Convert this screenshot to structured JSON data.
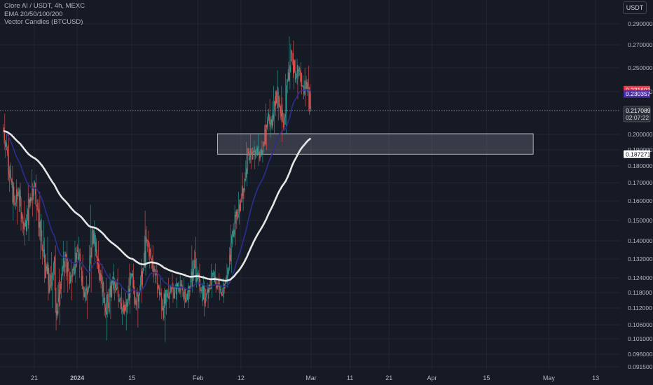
{
  "legend": {
    "symbol_line": "Clore AI / USDT, 4h, MEXC",
    "ema_line": "EMA 20/50/100/200",
    "vector_line": "Vector Candles (BTCUSD)"
  },
  "currency_button": "USDT",
  "colors": {
    "background": "#161a25",
    "bull": "#26a69a",
    "bear": "#ef5350",
    "ema_fast": "#2b2e8f",
    "ema_slow": "#e6e6e6",
    "zone_fill": "rgba(120,123,134,0.35)",
    "zone_border": "#d1d4dc",
    "red_tag": "#f23645",
    "purple_tag": "#4b2ea8",
    "white_tag": "#ffffff"
  },
  "chart_data": {
    "type": "candlestick",
    "title": "Clore AI / USDT, 4h, MEXC",
    "y_axis": {
      "unit": "USDT",
      "ticks": [
        "0.290000",
        "0.270000",
        "0.250000",
        "0.230000",
        "0.200000",
        "0.190000",
        "0.180000",
        "0.170000",
        "0.160000",
        "0.150000",
        "0.140000",
        "0.132000",
        "0.124000",
        "0.118000",
        "0.112000",
        "0.106000",
        "0.101000",
        "0.096000",
        "0.091500"
      ]
    },
    "x_axis": {
      "ticks": [
        "21",
        "2024",
        "15",
        "Feb",
        "12",
        "Mar",
        "11",
        "21",
        "Apr",
        "15",
        "May",
        "13"
      ]
    },
    "price_tags": {
      "ema_red": "0.231601",
      "ema_purple": "0.230357",
      "last_price": "0.217089",
      "countdown": "02:07:22",
      "zone_low": "0.187271"
    },
    "zone": {
      "from_date": "2024-02-06",
      "to_date": "2024-04-27",
      "low": 0.187271,
      "high": 0.2005
    },
    "ohlc_daily": [
      {
        "date": "2023-12-13",
        "o": 0.205,
        "h": 0.215,
        "l": 0.185,
        "c": 0.19
      },
      {
        "date": "2023-12-14",
        "o": 0.19,
        "h": 0.2,
        "l": 0.165,
        "c": 0.172
      },
      {
        "date": "2023-12-15",
        "o": 0.172,
        "h": 0.18,
        "l": 0.15,
        "c": 0.158
      },
      {
        "date": "2023-12-16",
        "o": 0.158,
        "h": 0.172,
        "l": 0.148,
        "c": 0.165
      },
      {
        "date": "2023-12-17",
        "o": 0.165,
        "h": 0.17,
        "l": 0.145,
        "c": 0.152
      },
      {
        "date": "2023-12-18",
        "o": 0.152,
        "h": 0.16,
        "l": 0.138,
        "c": 0.145
      },
      {
        "date": "2023-12-19",
        "o": 0.145,
        "h": 0.17,
        "l": 0.14,
        "c": 0.162
      },
      {
        "date": "2023-12-20",
        "o": 0.162,
        "h": 0.178,
        "l": 0.152,
        "c": 0.17
      },
      {
        "date": "2023-12-21",
        "o": 0.17,
        "h": 0.175,
        "l": 0.15,
        "c": 0.155
      },
      {
        "date": "2023-12-22",
        "o": 0.155,
        "h": 0.165,
        "l": 0.132,
        "c": 0.138
      },
      {
        "date": "2023-12-23",
        "o": 0.138,
        "h": 0.15,
        "l": 0.122,
        "c": 0.128
      },
      {
        "date": "2023-12-24",
        "o": 0.128,
        "h": 0.142,
        "l": 0.115,
        "c": 0.12
      },
      {
        "date": "2023-12-25",
        "o": 0.12,
        "h": 0.135,
        "l": 0.112,
        "c": 0.13
      },
      {
        "date": "2023-12-26",
        "o": 0.13,
        "h": 0.138,
        "l": 0.104,
        "c": 0.11
      },
      {
        "date": "2023-12-27",
        "o": 0.11,
        "h": 0.128,
        "l": 0.106,
        "c": 0.124
      },
      {
        "date": "2023-12-28",
        "o": 0.124,
        "h": 0.14,
        "l": 0.118,
        "c": 0.134
      },
      {
        "date": "2023-12-29",
        "o": 0.134,
        "h": 0.14,
        "l": 0.118,
        "c": 0.122
      },
      {
        "date": "2023-12-30",
        "o": 0.122,
        "h": 0.132,
        "l": 0.115,
        "c": 0.128
      },
      {
        "date": "2023-12-31",
        "o": 0.128,
        "h": 0.14,
        "l": 0.122,
        "c": 0.136
      },
      {
        "date": "2024-01-01",
        "o": 0.136,
        "h": 0.142,
        "l": 0.124,
        "c": 0.128
      },
      {
        "date": "2024-01-02",
        "o": 0.128,
        "h": 0.134,
        "l": 0.115,
        "c": 0.118
      },
      {
        "date": "2024-01-03",
        "o": 0.118,
        "h": 0.125,
        "l": 0.108,
        "c": 0.12
      },
      {
        "date": "2024-01-04",
        "o": 0.12,
        "h": 0.158,
        "l": 0.118,
        "c": 0.145
      },
      {
        "date": "2024-01-05",
        "o": 0.145,
        "h": 0.15,
        "l": 0.13,
        "c": 0.134
      },
      {
        "date": "2024-01-06",
        "o": 0.134,
        "h": 0.14,
        "l": 0.122,
        "c": 0.126
      },
      {
        "date": "2024-01-07",
        "o": 0.126,
        "h": 0.13,
        "l": 0.113,
        "c": 0.116
      },
      {
        "date": "2024-01-08",
        "o": 0.116,
        "h": 0.124,
        "l": 0.1005,
        "c": 0.112
      },
      {
        "date": "2024-01-09",
        "o": 0.112,
        "h": 0.126,
        "l": 0.108,
        "c": 0.122
      },
      {
        "date": "2024-01-10",
        "o": 0.122,
        "h": 0.13,
        "l": 0.115,
        "c": 0.119
      },
      {
        "date": "2024-01-11",
        "o": 0.119,
        "h": 0.128,
        "l": 0.112,
        "c": 0.116
      },
      {
        "date": "2024-01-12",
        "o": 0.116,
        "h": 0.12,
        "l": 0.106,
        "c": 0.11
      },
      {
        "date": "2024-01-13",
        "o": 0.11,
        "h": 0.118,
        "l": 0.104,
        "c": 0.114
      },
      {
        "date": "2024-01-14",
        "o": 0.114,
        "h": 0.13,
        "l": 0.11,
        "c": 0.125
      },
      {
        "date": "2024-01-15",
        "o": 0.125,
        "h": 0.13,
        "l": 0.112,
        "c": 0.115
      },
      {
        "date": "2024-01-16",
        "o": 0.115,
        "h": 0.12,
        "l": 0.105,
        "c": 0.118
      },
      {
        "date": "2024-01-17",
        "o": 0.118,
        "h": 0.132,
        "l": 0.114,
        "c": 0.128
      },
      {
        "date": "2024-01-18",
        "o": 0.128,
        "h": 0.155,
        "l": 0.125,
        "c": 0.14
      },
      {
        "date": "2024-01-19",
        "o": 0.14,
        "h": 0.145,
        "l": 0.128,
        "c": 0.132
      },
      {
        "date": "2024-01-20",
        "o": 0.132,
        "h": 0.138,
        "l": 0.122,
        "c": 0.126
      },
      {
        "date": "2024-01-21",
        "o": 0.126,
        "h": 0.13,
        "l": 0.116,
        "c": 0.12
      },
      {
        "date": "2024-01-22",
        "o": 0.12,
        "h": 0.124,
        "l": 0.108,
        "c": 0.112
      },
      {
        "date": "2024-01-23",
        "o": 0.112,
        "h": 0.12,
        "l": 0.1,
        "c": 0.116
      },
      {
        "date": "2024-01-24",
        "o": 0.116,
        "h": 0.124,
        "l": 0.112,
        "c": 0.12
      },
      {
        "date": "2024-01-25",
        "o": 0.12,
        "h": 0.126,
        "l": 0.114,
        "c": 0.118
      },
      {
        "date": "2024-01-26",
        "o": 0.118,
        "h": 0.124,
        "l": 0.112,
        "c": 0.121
      },
      {
        "date": "2024-01-27",
        "o": 0.121,
        "h": 0.126,
        "l": 0.116,
        "c": 0.119
      },
      {
        "date": "2024-01-28",
        "o": 0.119,
        "h": 0.124,
        "l": 0.112,
        "c": 0.116
      },
      {
        "date": "2024-01-29",
        "o": 0.116,
        "h": 0.122,
        "l": 0.112,
        "c": 0.12
      },
      {
        "date": "2024-01-30",
        "o": 0.12,
        "h": 0.138,
        "l": 0.118,
        "c": 0.128
      },
      {
        "date": "2024-01-31",
        "o": 0.128,
        "h": 0.142,
        "l": 0.12,
        "c": 0.124
      },
      {
        "date": "2024-02-01",
        "o": 0.124,
        "h": 0.13,
        "l": 0.116,
        "c": 0.119
      },
      {
        "date": "2024-02-02",
        "o": 0.119,
        "h": 0.125,
        "l": 0.109,
        "c": 0.116
      },
      {
        "date": "2024-02-03",
        "o": 0.116,
        "h": 0.122,
        "l": 0.112,
        "c": 0.12
      },
      {
        "date": "2024-02-04",
        "o": 0.12,
        "h": 0.13,
        "l": 0.116,
        "c": 0.126
      },
      {
        "date": "2024-02-05",
        "o": 0.126,
        "h": 0.13,
        "l": 0.118,
        "c": 0.121
      },
      {
        "date": "2024-02-06",
        "o": 0.121,
        "h": 0.126,
        "l": 0.115,
        "c": 0.118
      },
      {
        "date": "2024-02-07",
        "o": 0.118,
        "h": 0.124,
        "l": 0.114,
        "c": 0.122
      },
      {
        "date": "2024-02-08",
        "o": 0.122,
        "h": 0.13,
        "l": 0.12,
        "c": 0.128
      },
      {
        "date": "2024-02-09",
        "o": 0.128,
        "h": 0.148,
        "l": 0.126,
        "c": 0.145
      },
      {
        "date": "2024-02-10",
        "o": 0.145,
        "h": 0.158,
        "l": 0.138,
        "c": 0.152
      },
      {
        "date": "2024-02-11",
        "o": 0.152,
        "h": 0.165,
        "l": 0.148,
        "c": 0.16
      },
      {
        "date": "2024-02-12",
        "o": 0.16,
        "h": 0.176,
        "l": 0.155,
        "c": 0.172
      },
      {
        "date": "2024-02-13",
        "o": 0.172,
        "h": 0.195,
        "l": 0.168,
        "c": 0.188
      },
      {
        "date": "2024-02-14",
        "o": 0.188,
        "h": 0.2,
        "l": 0.178,
        "c": 0.184
      },
      {
        "date": "2024-02-15",
        "o": 0.184,
        "h": 0.196,
        "l": 0.178,
        "c": 0.19
      },
      {
        "date": "2024-02-16",
        "o": 0.19,
        "h": 0.2,
        "l": 0.18,
        "c": 0.186
      },
      {
        "date": "2024-02-17",
        "o": 0.186,
        "h": 0.196,
        "l": 0.182,
        "c": 0.194
      },
      {
        "date": "2024-02-18",
        "o": 0.194,
        "h": 0.222,
        "l": 0.19,
        "c": 0.215
      },
      {
        "date": "2024-02-19",
        "o": 0.215,
        "h": 0.225,
        "l": 0.198,
        "c": 0.205
      },
      {
        "date": "2024-02-20",
        "o": 0.205,
        "h": 0.235,
        "l": 0.2,
        "c": 0.23
      },
      {
        "date": "2024-02-21",
        "o": 0.23,
        "h": 0.248,
        "l": 0.21,
        "c": 0.22
      },
      {
        "date": "2024-02-22",
        "o": 0.22,
        "h": 0.235,
        "l": 0.195,
        "c": 0.205
      },
      {
        "date": "2024-02-23",
        "o": 0.205,
        "h": 0.245,
        "l": 0.2,
        "c": 0.24
      },
      {
        "date": "2024-02-24",
        "o": 0.24,
        "h": 0.278,
        "l": 0.232,
        "c": 0.265
      },
      {
        "date": "2024-02-25",
        "o": 0.265,
        "h": 0.274,
        "l": 0.232,
        "c": 0.24
      },
      {
        "date": "2024-02-26",
        "o": 0.24,
        "h": 0.258,
        "l": 0.225,
        "c": 0.25
      },
      {
        "date": "2024-02-27",
        "o": 0.25,
        "h": 0.255,
        "l": 0.228,
        "c": 0.235
      },
      {
        "date": "2024-02-28",
        "o": 0.235,
        "h": 0.25,
        "l": 0.22,
        "c": 0.232
      },
      {
        "date": "2024-02-29",
        "o": 0.232,
        "h": 0.252,
        "l": 0.214,
        "c": 0.217089
      }
    ]
  }
}
